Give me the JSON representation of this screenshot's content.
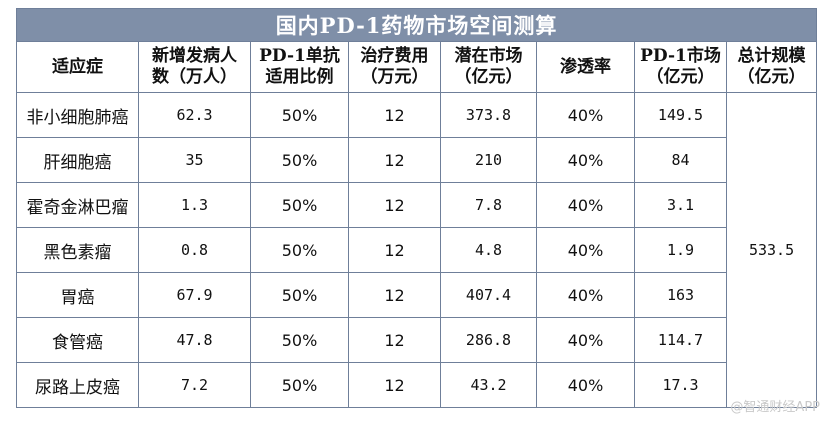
{
  "table": {
    "title": "国内PD-1药物市场空间测算",
    "headers": [
      [
        "适应症"
      ],
      [
        "新增发病人",
        "数（万人）"
      ],
      [
        "PD-1单抗",
        "适用比例"
      ],
      [
        "治疗费用",
        "（万元）"
      ],
      [
        "潜在市场",
        "（亿元）"
      ],
      [
        "渗透率"
      ],
      [
        "PD-1市场",
        "（亿元）"
      ],
      [
        "总计规模",
        "（亿元）"
      ]
    ],
    "rows": [
      {
        "name": "非小细胞肺癌",
        "cases": "62.3",
        "ratio": "50%",
        "cost": "12",
        "potential": "373.8",
        "penetration": "40%",
        "market": "149.5"
      },
      {
        "name": "肝细胞癌",
        "cases": "35",
        "ratio": "50%",
        "cost": "12",
        "potential": "210",
        "penetration": "40%",
        "market": "84"
      },
      {
        "name": "霍奇金淋巴瘤",
        "cases": "1.3",
        "ratio": "50%",
        "cost": "12",
        "potential": "7.8",
        "penetration": "40%",
        "market": "3.1"
      },
      {
        "name": "黑色素瘤",
        "cases": "0.8",
        "ratio": "50%",
        "cost": "12",
        "potential": "4.8",
        "penetration": "40%",
        "market": "1.9"
      },
      {
        "name": "胃癌",
        "cases": "67.9",
        "ratio": "50%",
        "cost": "12",
        "potential": "407.4",
        "penetration": "40%",
        "market": "163"
      },
      {
        "name": "食管癌",
        "cases": "47.8",
        "ratio": "50%",
        "cost": "12",
        "potential": "286.8",
        "penetration": "40%",
        "market": "114.7"
      },
      {
        "name": "尿路上皮癌",
        "cases": "7.2",
        "ratio": "50%",
        "cost": "12",
        "potential": "43.2",
        "penetration": "40%",
        "market": "17.3"
      }
    ],
    "total": "533.5"
  },
  "watermark": "@智通财经APP"
}
